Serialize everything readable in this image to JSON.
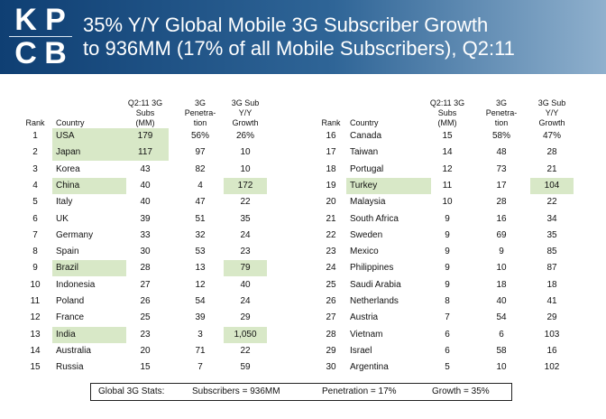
{
  "brand": {
    "logo_letters": [
      "K",
      "P",
      "C",
      "B"
    ]
  },
  "title": {
    "line1": "35% Y/Y Global Mobile 3G Subscriber Growth",
    "line2": "to 936MM (17% of all Mobile Subscribers), Q2:11"
  },
  "columns": {
    "rank": "Rank",
    "country": "Country",
    "subs": "Q2:11 3G\nSubs\n(MM)",
    "penetration": "3G\nPenetra-\ntion",
    "growth": "3G Sub\nY/Y\nGrowth"
  },
  "left_rows": [
    {
      "rank": "1",
      "country": "USA",
      "subs": "179",
      "penetration": "56%",
      "growth": "26%",
      "hl": "country_subs"
    },
    {
      "rank": "2",
      "country": "Japan",
      "subs": "117",
      "penetration": "97",
      "growth": "10",
      "hl": "country_subs"
    },
    {
      "rank": "3",
      "country": "Korea",
      "subs": "43",
      "penetration": "82",
      "growth": "10",
      "hl": ""
    },
    {
      "rank": "4",
      "country": "China",
      "subs": "40",
      "penetration": "4",
      "growth": "172",
      "hl": "country_growth"
    },
    {
      "rank": "5",
      "country": "Italy",
      "subs": "40",
      "penetration": "47",
      "growth": "22",
      "hl": ""
    },
    {
      "rank": "6",
      "country": "UK",
      "subs": "39",
      "penetration": "51",
      "growth": "35",
      "hl": ""
    },
    {
      "rank": "7",
      "country": "Germany",
      "subs": "33",
      "penetration": "32",
      "growth": "24",
      "hl": ""
    },
    {
      "rank": "8",
      "country": "Spain",
      "subs": "30",
      "penetration": "53",
      "growth": "23",
      "hl": ""
    },
    {
      "rank": "9",
      "country": "Brazil",
      "subs": "28",
      "penetration": "13",
      "growth": "79",
      "hl": "country_growth"
    },
    {
      "rank": "10",
      "country": "Indonesia",
      "subs": "27",
      "penetration": "12",
      "growth": "40",
      "hl": ""
    },
    {
      "rank": "11",
      "country": "Poland",
      "subs": "26",
      "penetration": "54",
      "growth": "24",
      "hl": ""
    },
    {
      "rank": "12",
      "country": "France",
      "subs": "25",
      "penetration": "39",
      "growth": "29",
      "hl": ""
    },
    {
      "rank": "13",
      "country": "India",
      "subs": "23",
      "penetration": "3",
      "growth": "1,050",
      "hl": "country_growth"
    },
    {
      "rank": "14",
      "country": "Australia",
      "subs": "20",
      "penetration": "71",
      "growth": "22",
      "hl": ""
    },
    {
      "rank": "15",
      "country": "Russia",
      "subs": "15",
      "penetration": "7",
      "growth": "59",
      "hl": ""
    }
  ],
  "right_rows": [
    {
      "rank": "16",
      "country": "Canada",
      "subs": "15",
      "penetration": "58%",
      "growth": "47%",
      "hl": ""
    },
    {
      "rank": "17",
      "country": "Taiwan",
      "subs": "14",
      "penetration": "48",
      "growth": "28",
      "hl": ""
    },
    {
      "rank": "18",
      "country": "Portugal",
      "subs": "12",
      "penetration": "73",
      "growth": "21",
      "hl": ""
    },
    {
      "rank": "19",
      "country": "Turkey",
      "subs": "11",
      "penetration": "17",
      "growth": "104",
      "hl": "country_growth"
    },
    {
      "rank": "20",
      "country": "Malaysia",
      "subs": "10",
      "penetration": "28",
      "growth": "22",
      "hl": ""
    },
    {
      "rank": "21",
      "country": "South Africa",
      "subs": "9",
      "penetration": "16",
      "growth": "34",
      "hl": ""
    },
    {
      "rank": "22",
      "country": "Sweden",
      "subs": "9",
      "penetration": "69",
      "growth": "35",
      "hl": ""
    },
    {
      "rank": "23",
      "country": "Mexico",
      "subs": "9",
      "penetration": "9",
      "growth": "85",
      "hl": ""
    },
    {
      "rank": "24",
      "country": "Philippines",
      "subs": "9",
      "penetration": "10",
      "growth": "87",
      "hl": ""
    },
    {
      "rank": "25",
      "country": "Saudi Arabia",
      "subs": "9",
      "penetration": "18",
      "growth": "18",
      "hl": ""
    },
    {
      "rank": "26",
      "country": "Netherlands",
      "subs": "8",
      "penetration": "40",
      "growth": "41",
      "hl": ""
    },
    {
      "rank": "27",
      "country": "Austria",
      "subs": "7",
      "penetration": "54",
      "growth": "29",
      "hl": ""
    },
    {
      "rank": "28",
      "country": "Vietnam",
      "subs": "6",
      "penetration": "6",
      "growth": "103",
      "hl": ""
    },
    {
      "rank": "29",
      "country": "Israel",
      "subs": "6",
      "penetration": "58",
      "growth": "16",
      "hl": ""
    },
    {
      "rank": "30",
      "country": "Argentina",
      "subs": "5",
      "penetration": "10",
      "growth": "102",
      "hl": ""
    }
  ],
  "footer": {
    "label": "Global 3G Stats:",
    "subscribers": "Subscribers = 936MM",
    "penetration": "Penetration = 17%",
    "growth": "Growth = 35%"
  },
  "colors": {
    "header_dark": "#0f3f73",
    "highlight": "#d8e8c7"
  }
}
